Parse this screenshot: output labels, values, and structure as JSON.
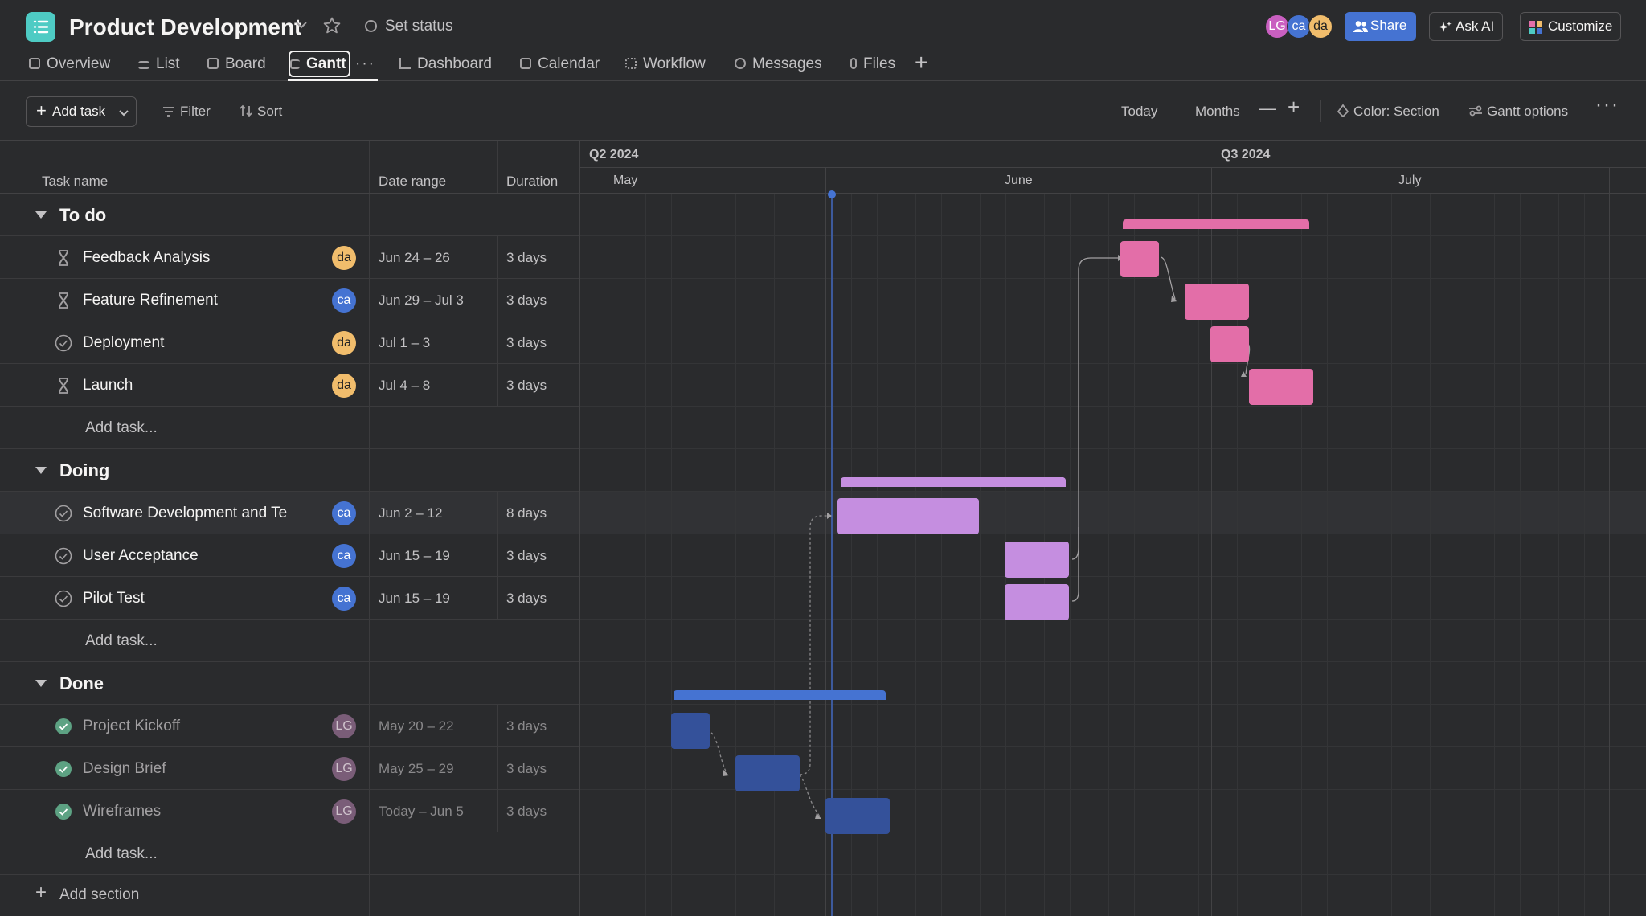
{
  "header": {
    "project_title": "Product Development",
    "set_status": "Set status",
    "avatars": [
      {
        "initials": "LG",
        "color": "#c95fc0"
      },
      {
        "initials": "ca",
        "color": "#4573d2"
      },
      {
        "initials": "da",
        "color": "#f1bd6c"
      }
    ],
    "share_label": "Share",
    "ask_ai_label": "Ask AI",
    "customize_label": "Customize"
  },
  "tabs": [
    {
      "label": "Overview",
      "icon": "overview-icon"
    },
    {
      "label": "List",
      "icon": "list-icon"
    },
    {
      "label": "Board",
      "icon": "board-icon"
    },
    {
      "label": "Gantt",
      "icon": "gantt-icon",
      "active": true
    },
    {
      "label": "Dashboard",
      "icon": "dashboard-icon"
    },
    {
      "label": "Calendar",
      "icon": "calendar-icon"
    },
    {
      "label": "Workflow",
      "icon": "workflow-icon"
    },
    {
      "label": "Messages",
      "icon": "messages-icon"
    },
    {
      "label": "Files",
      "icon": "files-icon"
    }
  ],
  "toolbar": {
    "add_task": "Add task",
    "filter": "Filter",
    "sort": "Sort",
    "today": "Today",
    "zoom_level": "Months",
    "color": "Color: Section",
    "gantt_options": "Gantt options"
  },
  "grid": {
    "col_task": "Task name",
    "col_date": "Date range",
    "col_duration": "Duration",
    "add_task_placeholder": "Add task...",
    "add_section": "Add section"
  },
  "timeline": {
    "quarters": [
      "Q2 2024",
      "Q3 2024"
    ],
    "months": [
      "May",
      "June",
      "July"
    ]
  },
  "colors": {
    "todo": "#e36ea8",
    "doing": "#c58ee0",
    "done": "#34519a",
    "done_summary": "#4573d2",
    "check_done": "#5da283"
  },
  "sections": [
    {
      "title": "To do",
      "tasks": [
        {
          "name": "Feedback Analysis",
          "assignee": "da",
          "dates": "Jun 24 – 26",
          "duration": "3 days",
          "status": "milestone"
        },
        {
          "name": "Feature Refinement",
          "assignee": "ca",
          "dates": "Jun 29 – Jul 3",
          "duration": "3 days",
          "status": "milestone"
        },
        {
          "name": "Deployment",
          "assignee": "da",
          "dates": "Jul 1 – 3",
          "duration": "3 days",
          "status": "open"
        },
        {
          "name": "Launch",
          "assignee": "da",
          "dates": "Jul 4 – 8",
          "duration": "3 days",
          "status": "milestone"
        }
      ]
    },
    {
      "title": "Doing",
      "tasks": [
        {
          "name": "Software Development and Te",
          "assignee": "ca",
          "dates": "Jun 2 – 12",
          "duration": "8 days",
          "status": "open"
        },
        {
          "name": "User Acceptance",
          "assignee": "ca",
          "dates": "Jun 15 – 19",
          "duration": "3 days",
          "status": "open"
        },
        {
          "name": "Pilot Test",
          "assignee": "ca",
          "dates": "Jun 15 – 19",
          "duration": "3 days",
          "status": "open"
        }
      ]
    },
    {
      "title": "Done",
      "tasks": [
        {
          "name": "Project Kickoff",
          "assignee": "LG",
          "dates": "May 20 – 22",
          "duration": "3 days",
          "status": "done"
        },
        {
          "name": "Design Brief",
          "assignee": "LG",
          "dates": "May 25 – 29",
          "duration": "3 days",
          "status": "done"
        },
        {
          "name": "Wireframes",
          "assignee": "LG",
          "dates": "Today – Jun 5",
          "duration": "3 days",
          "status": "done"
        }
      ]
    }
  ]
}
